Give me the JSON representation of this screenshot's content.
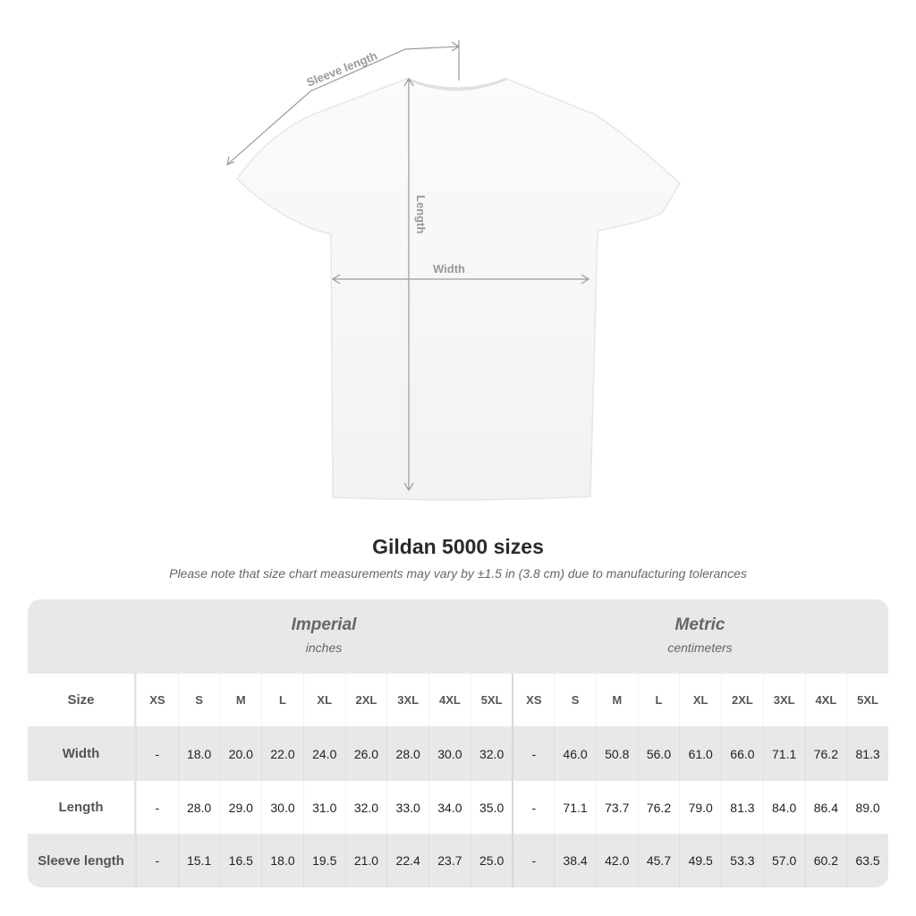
{
  "diagram": {
    "labels": {
      "sleeve": "Sleeve length",
      "length": "Length",
      "width": "Width"
    }
  },
  "title": "Gildan 5000 sizes",
  "note": "Please note that size chart measurements may vary by ±1.5 in (3.8 cm) due to manufacturing tolerances",
  "table": {
    "imperial": {
      "title": "Imperial",
      "unit": "inches"
    },
    "metric": {
      "title": "Metric",
      "unit": "centimeters"
    },
    "size_label": "Size",
    "sizes": [
      "XS",
      "S",
      "M",
      "L",
      "XL",
      "2XL",
      "3XL",
      "4XL",
      "5XL"
    ],
    "rows": [
      {
        "label": "Width",
        "imperial": [
          "-",
          "18.0",
          "20.0",
          "22.0",
          "24.0",
          "26.0",
          "28.0",
          "30.0",
          "32.0"
        ],
        "metric": [
          "-",
          "46.0",
          "50.8",
          "56.0",
          "61.0",
          "66.0",
          "71.1",
          "76.2",
          "81.3"
        ]
      },
      {
        "label": "Length",
        "imperial": [
          "-",
          "28.0",
          "29.0",
          "30.0",
          "31.0",
          "32.0",
          "33.0",
          "34.0",
          "35.0"
        ],
        "metric": [
          "-",
          "71.1",
          "73.7",
          "76.2",
          "79.0",
          "81.3",
          "84.0",
          "86.4",
          "89.0"
        ]
      },
      {
        "label": "Sleeve length",
        "imperial": [
          "-",
          "15.1",
          "16.5",
          "18.0",
          "19.5",
          "21.0",
          "22.4",
          "23.7",
          "25.0"
        ],
        "metric": [
          "-",
          "38.4",
          "42.0",
          "45.7",
          "49.5",
          "53.3",
          "57.0",
          "60.2",
          "63.5"
        ]
      }
    ]
  }
}
